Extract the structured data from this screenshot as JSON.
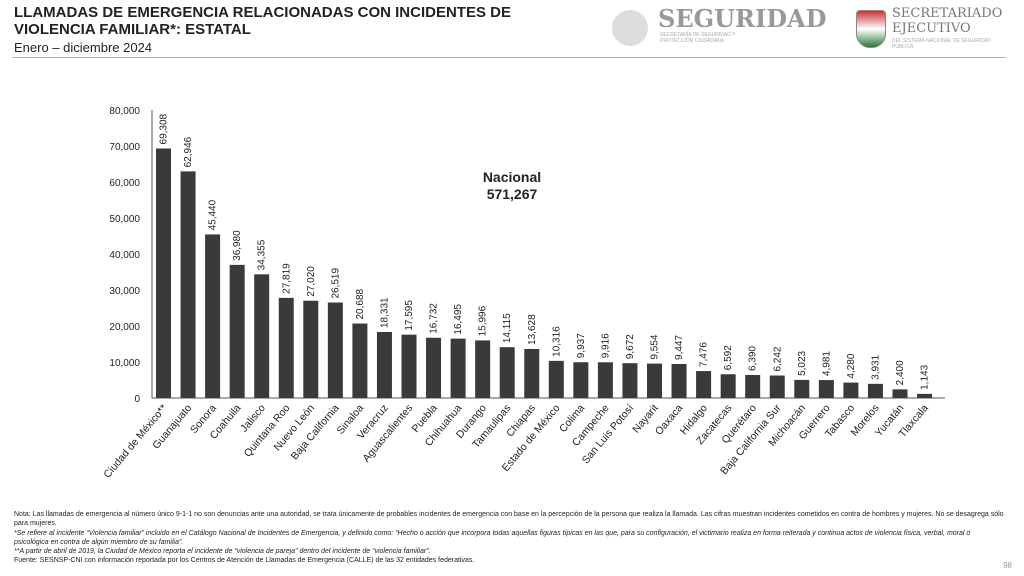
{
  "header": {
    "title": "LLAMADAS DE EMERGENCIA RELACIONADAS CON INCIDENTES DE VIOLENCIA FAMILIAR*: ESTATAL",
    "subtitle": "Enero – diciembre 2024",
    "logo1": "SEGURIDAD",
    "logo1_sub": "SECRETARÍA DE SEGURIDAD Y PROTECCIÓN CIUDADANA",
    "logo2": "SECRETARIADO EJECUTIVO",
    "logo2_sub": "DEL SISTEMA NACIONAL DE SEGURIDAD PÚBLICA"
  },
  "chart_data": {
    "type": "bar",
    "ylim": [
      0,
      80000
    ],
    "yticks": [
      "0",
      "10,000",
      "20,000",
      "30,000",
      "40,000",
      "50,000",
      "60,000",
      "70,000",
      "80,000"
    ],
    "bar_color": "#3a3a3a",
    "annotation": {
      "label": "Nacional",
      "value": "571,267"
    },
    "categories": [
      "Ciudad de México**",
      "Guanajuato",
      "Sonora",
      "Coahuila",
      "Jalisco",
      "Quintana Roo",
      "Nuevo León",
      "Baja California",
      "Sinaloa",
      "Veracruz",
      "Aguascalientes",
      "Puebla",
      "Chihuahua",
      "Durango",
      "Tamaulipas",
      "Chiapas",
      "Estado de México",
      "Colima",
      "Campeche",
      "San Luis Potosí",
      "Nayarit",
      "Oaxaca",
      "Hidalgo",
      "Zacatecas",
      "Querétaro",
      "Baja California Sur",
      "Michoacán",
      "Guerrero",
      "Tabasco",
      "Morelos",
      "Yucatán",
      "Tlaxcala"
    ],
    "values": [
      69308,
      62946,
      45440,
      36980,
      34355,
      27819,
      27020,
      26519,
      20688,
      18331,
      17595,
      16732,
      16495,
      15996,
      14115,
      13628,
      10316,
      9937,
      9916,
      9672,
      9554,
      9447,
      7476,
      6592,
      6390,
      6242,
      5023,
      4981,
      4280,
      3931,
      2400,
      1143
    ]
  },
  "notes": [
    "Nota: Las llamadas de emergencia al número único 9-1-1 no son denuncias ante una autoridad, se trata únicamente de probables incidentes de emergencia con base en la percepción de la persona que realiza la llamada. Las cifras muestran incidentes cometidos en contra de hombres y mujeres. No se desagrega sólo para mujeres.",
    "*Se refiere al incidente “Violencia familiar” incluido en el Catálogo Nacional de Incidentes de Emergencia, y definido como: “Hecho o acción que incorpora todas aquellas figuras típicas en las que, para su configuración, el victimario realiza en forma reiterada y continua actos de violencia física, verbal, moral o psicológica en contra de algún miembro de su familia”.",
    "**A partir de abril de 2019, la Ciudad de México reporta el incidente de “violencia de pareja” dentro del incidente de “violencia familiar”.",
    "Fuente: SESNSP-CNI con información reportada por los Centros de Atención de Llamadas de Emergencia (CALLE) de las 32 entidades federativas."
  ],
  "page_number": "98"
}
